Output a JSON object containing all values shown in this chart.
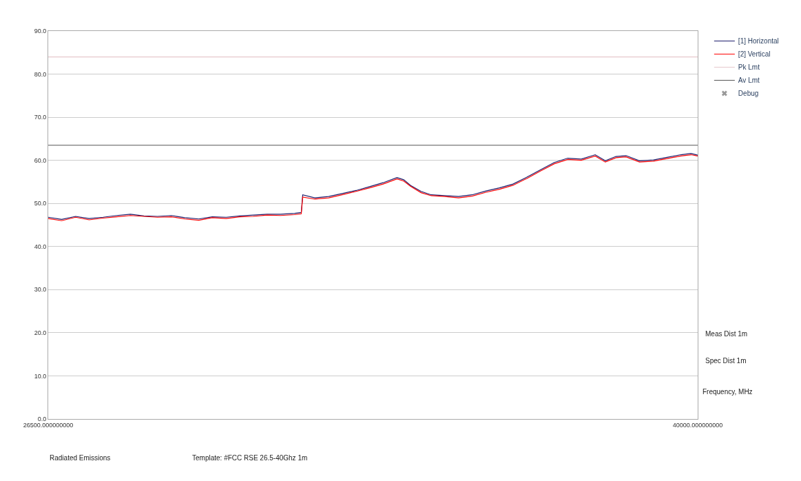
{
  "chart_data": {
    "type": "line",
    "x": [
      26500,
      26780,
      27070,
      27350,
      27640,
      27920,
      28210,
      28490,
      28770,
      29060,
      29340,
      29630,
      29910,
      30200,
      30480,
      30760,
      31050,
      31330,
      31620,
      31760,
      31790,
      32040,
      32330,
      32610,
      32900,
      33180,
      33460,
      33750,
      33890,
      34030,
      34250,
      34460,
      34740,
      35030,
      35310,
      35600,
      35880,
      36160,
      36450,
      36730,
      37020,
      37300,
      37580,
      37870,
      38080,
      38300,
      38510,
      38790,
      39080,
      39360,
      39650,
      39860,
      40000
    ],
    "series": [
      {
        "name": "[1] Horizontal",
        "color": "#1c1c6b",
        "values": [
          46.8,
          46.3,
          47.0,
          46.5,
          46.8,
          47.2,
          47.5,
          47.1,
          47.0,
          47.2,
          46.7,
          46.4,
          46.9,
          46.8,
          47.1,
          47.3,
          47.5,
          47.5,
          47.7,
          47.9,
          52.0,
          51.3,
          51.6,
          52.3,
          53.0,
          53.9,
          54.8,
          56.0,
          55.5,
          54.2,
          52.8,
          52.0,
          51.8,
          51.6,
          52.0,
          52.9,
          53.6,
          54.5,
          56.1,
          57.8,
          59.5,
          60.5,
          60.3,
          61.3,
          59.9,
          60.9,
          61.1,
          59.9,
          60.1,
          60.7,
          61.3,
          61.6,
          61.2
        ]
      },
      {
        "name": "[2] Vertical",
        "color": "#ff0000",
        "values": [
          46.5,
          46.0,
          46.8,
          46.2,
          46.6,
          46.9,
          47.2,
          47.0,
          46.8,
          46.9,
          46.4,
          46.1,
          46.7,
          46.5,
          46.9,
          47.0,
          47.3,
          47.2,
          47.4,
          47.6,
          51.5,
          51.0,
          51.3,
          52.0,
          52.8,
          53.6,
          54.5,
          55.7,
          55.2,
          54.0,
          52.5,
          51.8,
          51.6,
          51.3,
          51.7,
          52.6,
          53.3,
          54.2,
          55.8,
          57.5,
          59.2,
          60.2,
          60.0,
          61.0,
          59.6,
          60.6,
          60.8,
          59.6,
          59.8,
          60.4,
          61.0,
          61.3,
          61.0
        ]
      },
      {
        "name": "Debug",
        "color": "#999999",
        "type": "scatter",
        "marker": "cross",
        "values": [
          null,
          null,
          null,
          null,
          null,
          null,
          null,
          null,
          null,
          null,
          null,
          null,
          null,
          null,
          null,
          null,
          null,
          null,
          null,
          null,
          null,
          null,
          null,
          null,
          null,
          null,
          null,
          null,
          null,
          null,
          null,
          null,
          null,
          null,
          null,
          null,
          null,
          null,
          null,
          null,
          null,
          null,
          null,
          null,
          null,
          null,
          null,
          null,
          null,
          null,
          null,
          null,
          null
        ]
      }
    ],
    "ref_lines": [
      {
        "axis": "y",
        "value": 84,
        "label": "Pk Lmt",
        "color": "#e6c8cc"
      },
      {
        "axis": "y",
        "value": 63.5,
        "label": "Av Lmt",
        "color": "#555555"
      }
    ],
    "xlabel": "Frequency, MHz",
    "xlim": [
      26500,
      40000
    ],
    "xticks": [
      {
        "value": 26500,
        "label": "26500.000000000"
      },
      {
        "value": 40000,
        "label": "40000.000000000"
      }
    ],
    "ylim": [
      0,
      90
    ],
    "yticks": [
      {
        "value": 0,
        "label": "0.0"
      },
      {
        "value": 10,
        "label": "10.0"
      },
      {
        "value": 20,
        "label": "20.0"
      },
      {
        "value": 30,
        "label": "30.0"
      },
      {
        "value": 40,
        "label": "40.0"
      },
      {
        "value": 50,
        "label": "50.0"
      },
      {
        "value": 60,
        "label": "60.0"
      },
      {
        "value": 70,
        "label": "70.0"
      },
      {
        "value": 80,
        "label": "80.0"
      },
      {
        "value": 90,
        "label": "90.0"
      }
    ],
    "grid": "y",
    "legend": "top right",
    "marker": "none",
    "line_style": "solid",
    "annotations": [
      "Meas Dist 1m",
      "Spec Dist 1m",
      "Radiated Emissions",
      "Template: #FCC RSE 26.5-40Ghz 1m"
    ]
  }
}
